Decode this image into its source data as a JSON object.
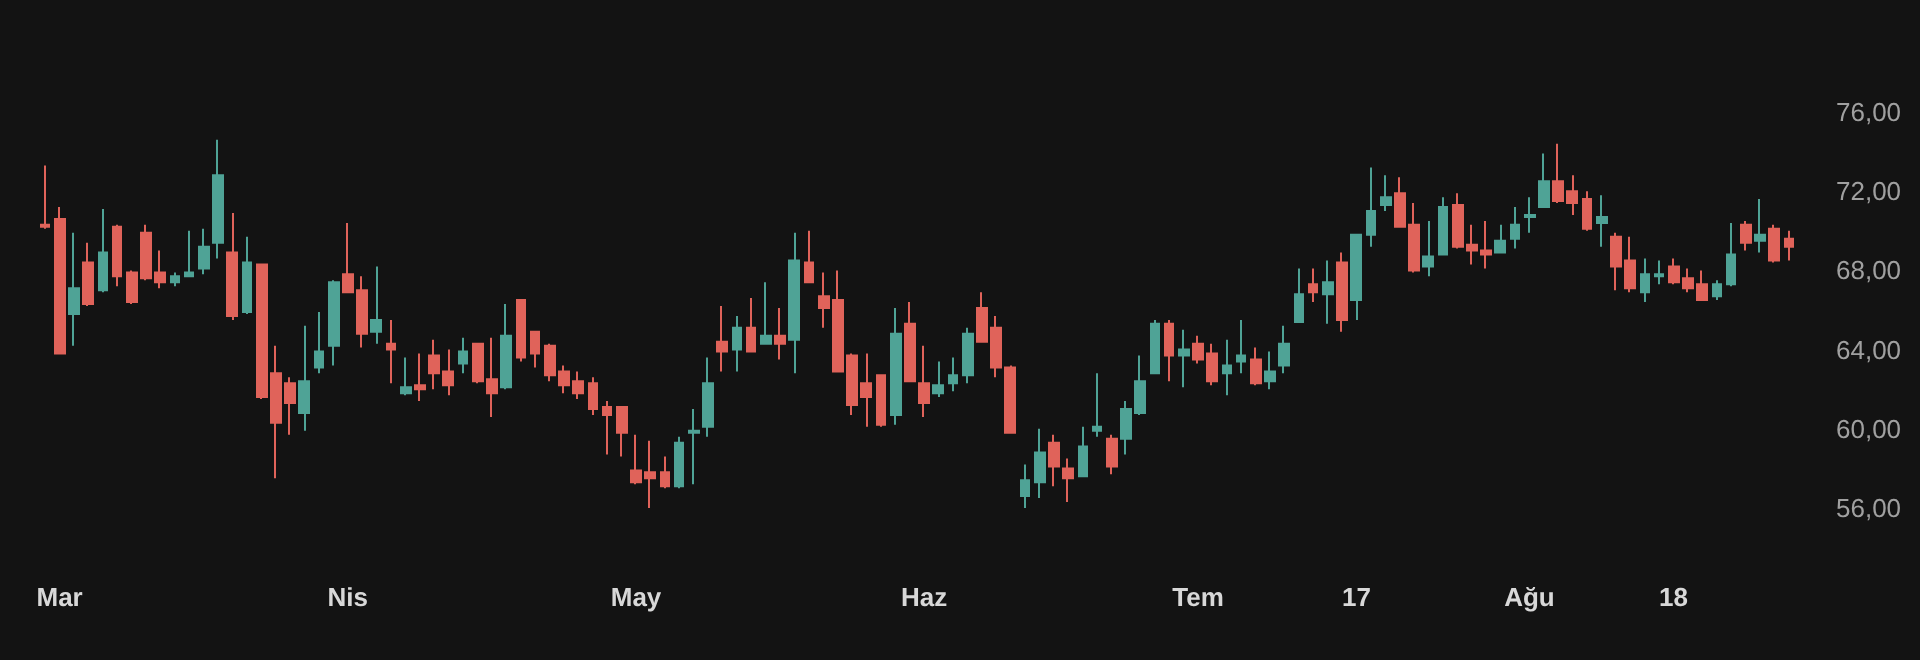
{
  "chart_data": {
    "type": "candlestick",
    "categories": [
      null,
      "Mar",
      null,
      null,
      null,
      null,
      null,
      null,
      null,
      null,
      null,
      null,
      null,
      null,
      null,
      null,
      null,
      null,
      null,
      null,
      null,
      "Nis",
      null,
      null,
      null,
      null,
      null,
      null,
      null,
      null,
      null,
      null,
      null,
      null,
      null,
      null,
      null,
      null,
      null,
      null,
      null,
      "May",
      null,
      null,
      null,
      null,
      null,
      null,
      null,
      null,
      null,
      null,
      null,
      null,
      null,
      null,
      null,
      null,
      null,
      null,
      null,
      "Haz",
      null,
      null,
      null,
      null,
      null,
      null,
      null,
      null,
      null,
      null,
      null,
      null,
      null,
      null,
      null,
      null,
      null,
      null,
      "Tem",
      null,
      null,
      null,
      null,
      null,
      null,
      null,
      null,
      null,
      null,
      "17",
      null,
      null,
      null,
      null,
      null,
      null,
      null,
      null,
      null,
      null,
      null,
      "Ağu",
      null,
      null,
      null,
      null,
      null,
      null,
      null,
      null,
      null,
      "18",
      null,
      null,
      null,
      null,
      null,
      null,
      null,
      null
    ],
    "ohlc": [
      [
        70.3,
        73.3,
        70.1,
        70.2
      ],
      [
        70.6,
        71.2,
        63.8,
        63.8
      ],
      [
        65.8,
        69.9,
        64.2,
        67.1
      ],
      [
        68.4,
        69.4,
        66.2,
        66.3
      ],
      [
        67.0,
        71.1,
        66.9,
        68.9
      ],
      [
        70.2,
        70.3,
        67.2,
        67.7
      ],
      [
        67.9,
        68.0,
        66.3,
        66.4
      ],
      [
        69.9,
        70.3,
        67.5,
        67.6
      ],
      [
        67.9,
        69.0,
        67.1,
        67.4
      ],
      [
        67.4,
        67.9,
        67.2,
        67.7
      ],
      [
        67.7,
        70.0,
        67.7,
        67.9
      ],
      [
        68.1,
        70.1,
        67.8,
        69.2
      ],
      [
        69.4,
        74.6,
        68.6,
        72.8
      ],
      [
        68.9,
        70.9,
        65.5,
        65.7
      ],
      [
        65.9,
        69.7,
        65.8,
        68.4
      ],
      [
        68.3,
        68.3,
        61.5,
        61.6
      ],
      [
        62.8,
        64.2,
        57.5,
        60.3
      ],
      [
        62.3,
        62.6,
        59.7,
        61.3
      ],
      [
        60.8,
        65.2,
        59.9,
        62.4
      ],
      [
        63.1,
        65.9,
        62.8,
        63.9
      ],
      [
        64.2,
        67.5,
        63.2,
        67.4
      ],
      [
        67.8,
        70.4,
        66.9,
        66.9
      ],
      [
        67.0,
        67.7,
        64.1,
        64.8
      ],
      [
        64.9,
        68.2,
        64.3,
        65.5
      ],
      [
        64.3,
        65.5,
        62.3,
        64.0
      ],
      [
        61.8,
        63.6,
        61.7,
        62.1
      ],
      [
        62.2,
        63.8,
        61.4,
        62.0
      ],
      [
        63.7,
        64.5,
        62.0,
        62.8
      ],
      [
        62.9,
        64.0,
        61.7,
        62.2
      ],
      [
        63.3,
        64.6,
        62.8,
        63.9
      ],
      [
        64.3,
        64.3,
        62.3,
        62.4
      ],
      [
        62.5,
        64.6,
        60.6,
        61.8
      ],
      [
        62.1,
        66.3,
        62.0,
        64.7
      ],
      [
        66.5,
        66.5,
        63.4,
        63.6
      ],
      [
        64.9,
        64.9,
        63.1,
        63.8
      ],
      [
        64.2,
        64.3,
        62.4,
        62.7
      ],
      [
        62.9,
        63.2,
        61.8,
        62.2
      ],
      [
        62.4,
        62.9,
        61.5,
        61.8
      ],
      [
        62.3,
        62.6,
        60.7,
        61.0
      ],
      [
        61.1,
        61.4,
        58.7,
        60.7
      ],
      [
        61.1,
        61.1,
        58.6,
        59.8
      ],
      [
        57.9,
        59.7,
        57.2,
        57.3
      ],
      [
        57.8,
        59.4,
        56.0,
        57.5
      ],
      [
        57.8,
        58.6,
        57.0,
        57.1
      ],
      [
        57.1,
        59.6,
        57.0,
        59.3
      ],
      [
        59.8,
        61.0,
        57.2,
        59.9
      ],
      [
        60.1,
        63.6,
        59.6,
        62.3
      ],
      [
        64.4,
        66.2,
        62.9,
        63.9
      ],
      [
        64.0,
        65.7,
        62.9,
        65.1
      ],
      [
        65.1,
        66.6,
        63.9,
        63.9
      ],
      [
        64.3,
        67.4,
        64.3,
        64.7
      ],
      [
        64.7,
        66.1,
        63.5,
        64.3
      ],
      [
        64.5,
        69.9,
        62.8,
        68.5
      ],
      [
        68.4,
        70.0,
        67.4,
        67.4
      ],
      [
        66.7,
        67.9,
        65.1,
        66.1
      ],
      [
        66.5,
        68.0,
        62.9,
        62.9
      ],
      [
        63.7,
        63.8,
        60.7,
        61.2
      ],
      [
        62.3,
        63.8,
        60.1,
        61.6
      ],
      [
        62.7,
        62.7,
        60.1,
        60.2
      ],
      [
        60.7,
        66.1,
        60.2,
        64.8
      ],
      [
        65.3,
        66.4,
        62.4,
        62.4
      ],
      [
        62.3,
        64.2,
        60.6,
        61.3
      ],
      [
        61.8,
        63.4,
        61.6,
        62.2
      ],
      [
        62.3,
        63.6,
        61.9,
        62.7
      ],
      [
        62.7,
        65.1,
        62.3,
        64.8
      ],
      [
        66.1,
        66.9,
        64.4,
        64.4
      ],
      [
        65.1,
        65.7,
        62.6,
        63.1
      ],
      [
        63.1,
        63.2,
        59.8,
        59.8
      ],
      [
        56.6,
        58.2,
        56.0,
        57.4
      ],
      [
        57.3,
        60.0,
        56.5,
        58.8
      ],
      [
        59.3,
        59.7,
        57.1,
        58.1
      ],
      [
        58.0,
        58.5,
        56.3,
        57.5
      ],
      [
        57.6,
        60.1,
        57.6,
        59.1
      ],
      [
        59.9,
        62.8,
        59.6,
        60.1
      ],
      [
        59.5,
        59.7,
        57.7,
        58.1
      ],
      [
        59.5,
        61.4,
        58.7,
        61.0
      ],
      [
        60.8,
        63.7,
        60.7,
        62.4
      ],
      [
        62.8,
        65.5,
        62.8,
        65.3
      ],
      [
        65.3,
        65.5,
        62.4,
        63.7
      ],
      [
        63.7,
        65.0,
        62.1,
        64.0
      ],
      [
        64.3,
        64.7,
        63.3,
        63.5
      ],
      [
        63.8,
        64.3,
        62.2,
        62.4
      ],
      [
        62.8,
        64.5,
        61.7,
        63.2
      ],
      [
        63.4,
        65.5,
        62.8,
        63.7
      ],
      [
        63.5,
        64.1,
        62.2,
        62.3
      ],
      [
        62.4,
        63.9,
        62.0,
        62.9
      ],
      [
        63.2,
        65.2,
        62.8,
        64.3
      ],
      [
        65.4,
        68.1,
        65.4,
        66.8
      ],
      [
        67.3,
        68.1,
        66.4,
        66.9
      ],
      [
        66.8,
        68.5,
        65.3,
        67.4
      ],
      [
        68.4,
        68.9,
        64.9,
        65.5
      ],
      [
        66.5,
        69.8,
        65.5,
        69.8
      ],
      [
        69.8,
        73.2,
        69.2,
        71.0
      ],
      [
        71.3,
        72.8,
        71.0,
        71.7
      ],
      [
        71.9,
        72.7,
        70.2,
        70.2
      ],
      [
        70.3,
        71.4,
        67.9,
        68.0
      ],
      [
        68.2,
        70.5,
        67.7,
        68.7
      ],
      [
        68.8,
        71.7,
        68.8,
        71.2
      ],
      [
        71.3,
        71.9,
        69.1,
        69.2
      ],
      [
        69.3,
        70.3,
        68.3,
        69.0
      ],
      [
        69.0,
        70.5,
        68.1,
        68.8
      ],
      [
        68.9,
        70.3,
        68.9,
        69.5
      ],
      [
        69.6,
        71.2,
        69.1,
        70.3
      ],
      [
        70.7,
        71.7,
        69.9,
        70.8
      ],
      [
        71.2,
        73.9,
        71.2,
        72.5
      ],
      [
        72.5,
        74.4,
        71.4,
        71.5
      ],
      [
        72.0,
        72.8,
        70.8,
        71.4
      ],
      [
        71.6,
        72.0,
        70.0,
        70.1
      ],
      [
        70.4,
        71.8,
        69.2,
        70.7
      ],
      [
        69.7,
        69.9,
        67.0,
        68.2
      ],
      [
        68.5,
        69.7,
        66.9,
        67.1
      ],
      [
        66.9,
        68.6,
        66.4,
        67.8
      ],
      [
        67.7,
        68.5,
        67.3,
        67.8
      ],
      [
        68.2,
        68.6,
        67.3,
        67.4
      ],
      [
        67.6,
        68.1,
        66.9,
        67.1
      ],
      [
        67.3,
        68.0,
        66.5,
        66.5
      ],
      [
        66.7,
        67.5,
        66.5,
        67.3
      ],
      [
        67.3,
        70.4,
        67.2,
        68.8
      ],
      [
        70.3,
        70.5,
        69.0,
        69.4
      ],
      [
        69.5,
        71.6,
        68.9,
        69.8
      ],
      [
        70.1,
        70.3,
        68.4,
        68.5
      ],
      [
        69.6,
        70.0,
        68.5,
        69.2
      ]
    ],
    "colors": [
      "#e0635a",
      "#e0635a",
      "#4fa396",
      "#e0635a",
      "#4fa396",
      "#e0635a",
      "#e0635a",
      "#e0635a",
      "#e0635a",
      "#4fa396",
      "#4fa396",
      "#4fa396",
      "#4fa396",
      "#e0635a",
      "#4fa396",
      "#e0635a",
      "#e0635a",
      "#e0635a",
      "#4fa396",
      "#4fa396",
      "#4fa396",
      "#e0635a",
      "#e0635a",
      "#4fa396",
      "#e0635a",
      "#4fa396",
      "#e0635a",
      "#e0635a",
      "#e0635a",
      "#4fa396",
      "#e0635a",
      "#e0635a",
      "#4fa396",
      "#e0635a",
      "#e0635a",
      "#e0635a",
      "#e0635a",
      "#e0635a",
      "#e0635a",
      "#e0635a",
      "#e0635a",
      "#e0635a",
      "#e0635a",
      "#e0635a",
      "#4fa396",
      "#4fa396",
      "#4fa396",
      "#e0635a",
      "#4fa396",
      "#e0635a",
      "#4fa396",
      "#e0635a",
      "#4fa396",
      "#e0635a",
      "#e0635a",
      "#e0635a",
      "#e0635a",
      "#e0635a",
      "#e0635a",
      "#4fa396",
      "#e0635a",
      "#e0635a",
      "#4fa396",
      "#4fa396",
      "#4fa396",
      "#e0635a",
      "#e0635a",
      "#e0635a",
      "#4fa396",
      "#4fa396",
      "#e0635a",
      "#e0635a",
      "#4fa396",
      "#4fa396",
      "#e0635a",
      "#4fa396",
      "#4fa396",
      "#4fa396",
      "#e0635a",
      "#4fa396",
      "#e0635a",
      "#e0635a",
      "#4fa396",
      "#4fa396",
      "#e0635a",
      "#4fa396",
      "#4fa396",
      "#4fa396",
      "#e0635a",
      "#4fa396",
      "#e0635a",
      "#4fa396",
      "#4fa396",
      "#4fa396",
      "#e0635a",
      "#e0635a",
      "#4fa396",
      "#4fa396",
      "#e0635a",
      "#e0635a",
      "#e0635a",
      "#4fa396",
      "#4fa396",
      "#4fa396",
      "#4fa396",
      "#e0635a",
      "#e0635a",
      "#e0635a",
      "#4fa396",
      "#e0635a",
      "#e0635a",
      "#4fa396",
      "#4fa396",
      "#e0635a",
      "#e0635a",
      "#e0635a",
      "#4fa396",
      "#4fa396",
      "#e0635a",
      "#4fa396",
      "#e0635a",
      "#e0635a"
    ],
    "ylim": [
      56,
      76
    ],
    "yticks": [
      {
        "value": 56,
        "label": "56,00"
      },
      {
        "value": 60,
        "label": "60,00"
      },
      {
        "value": 64,
        "label": "64,00"
      },
      {
        "value": 68,
        "label": "68,00"
      },
      {
        "value": 72,
        "label": "72,00"
      },
      {
        "value": 76,
        "label": "76,00"
      }
    ],
    "grid": false
  }
}
